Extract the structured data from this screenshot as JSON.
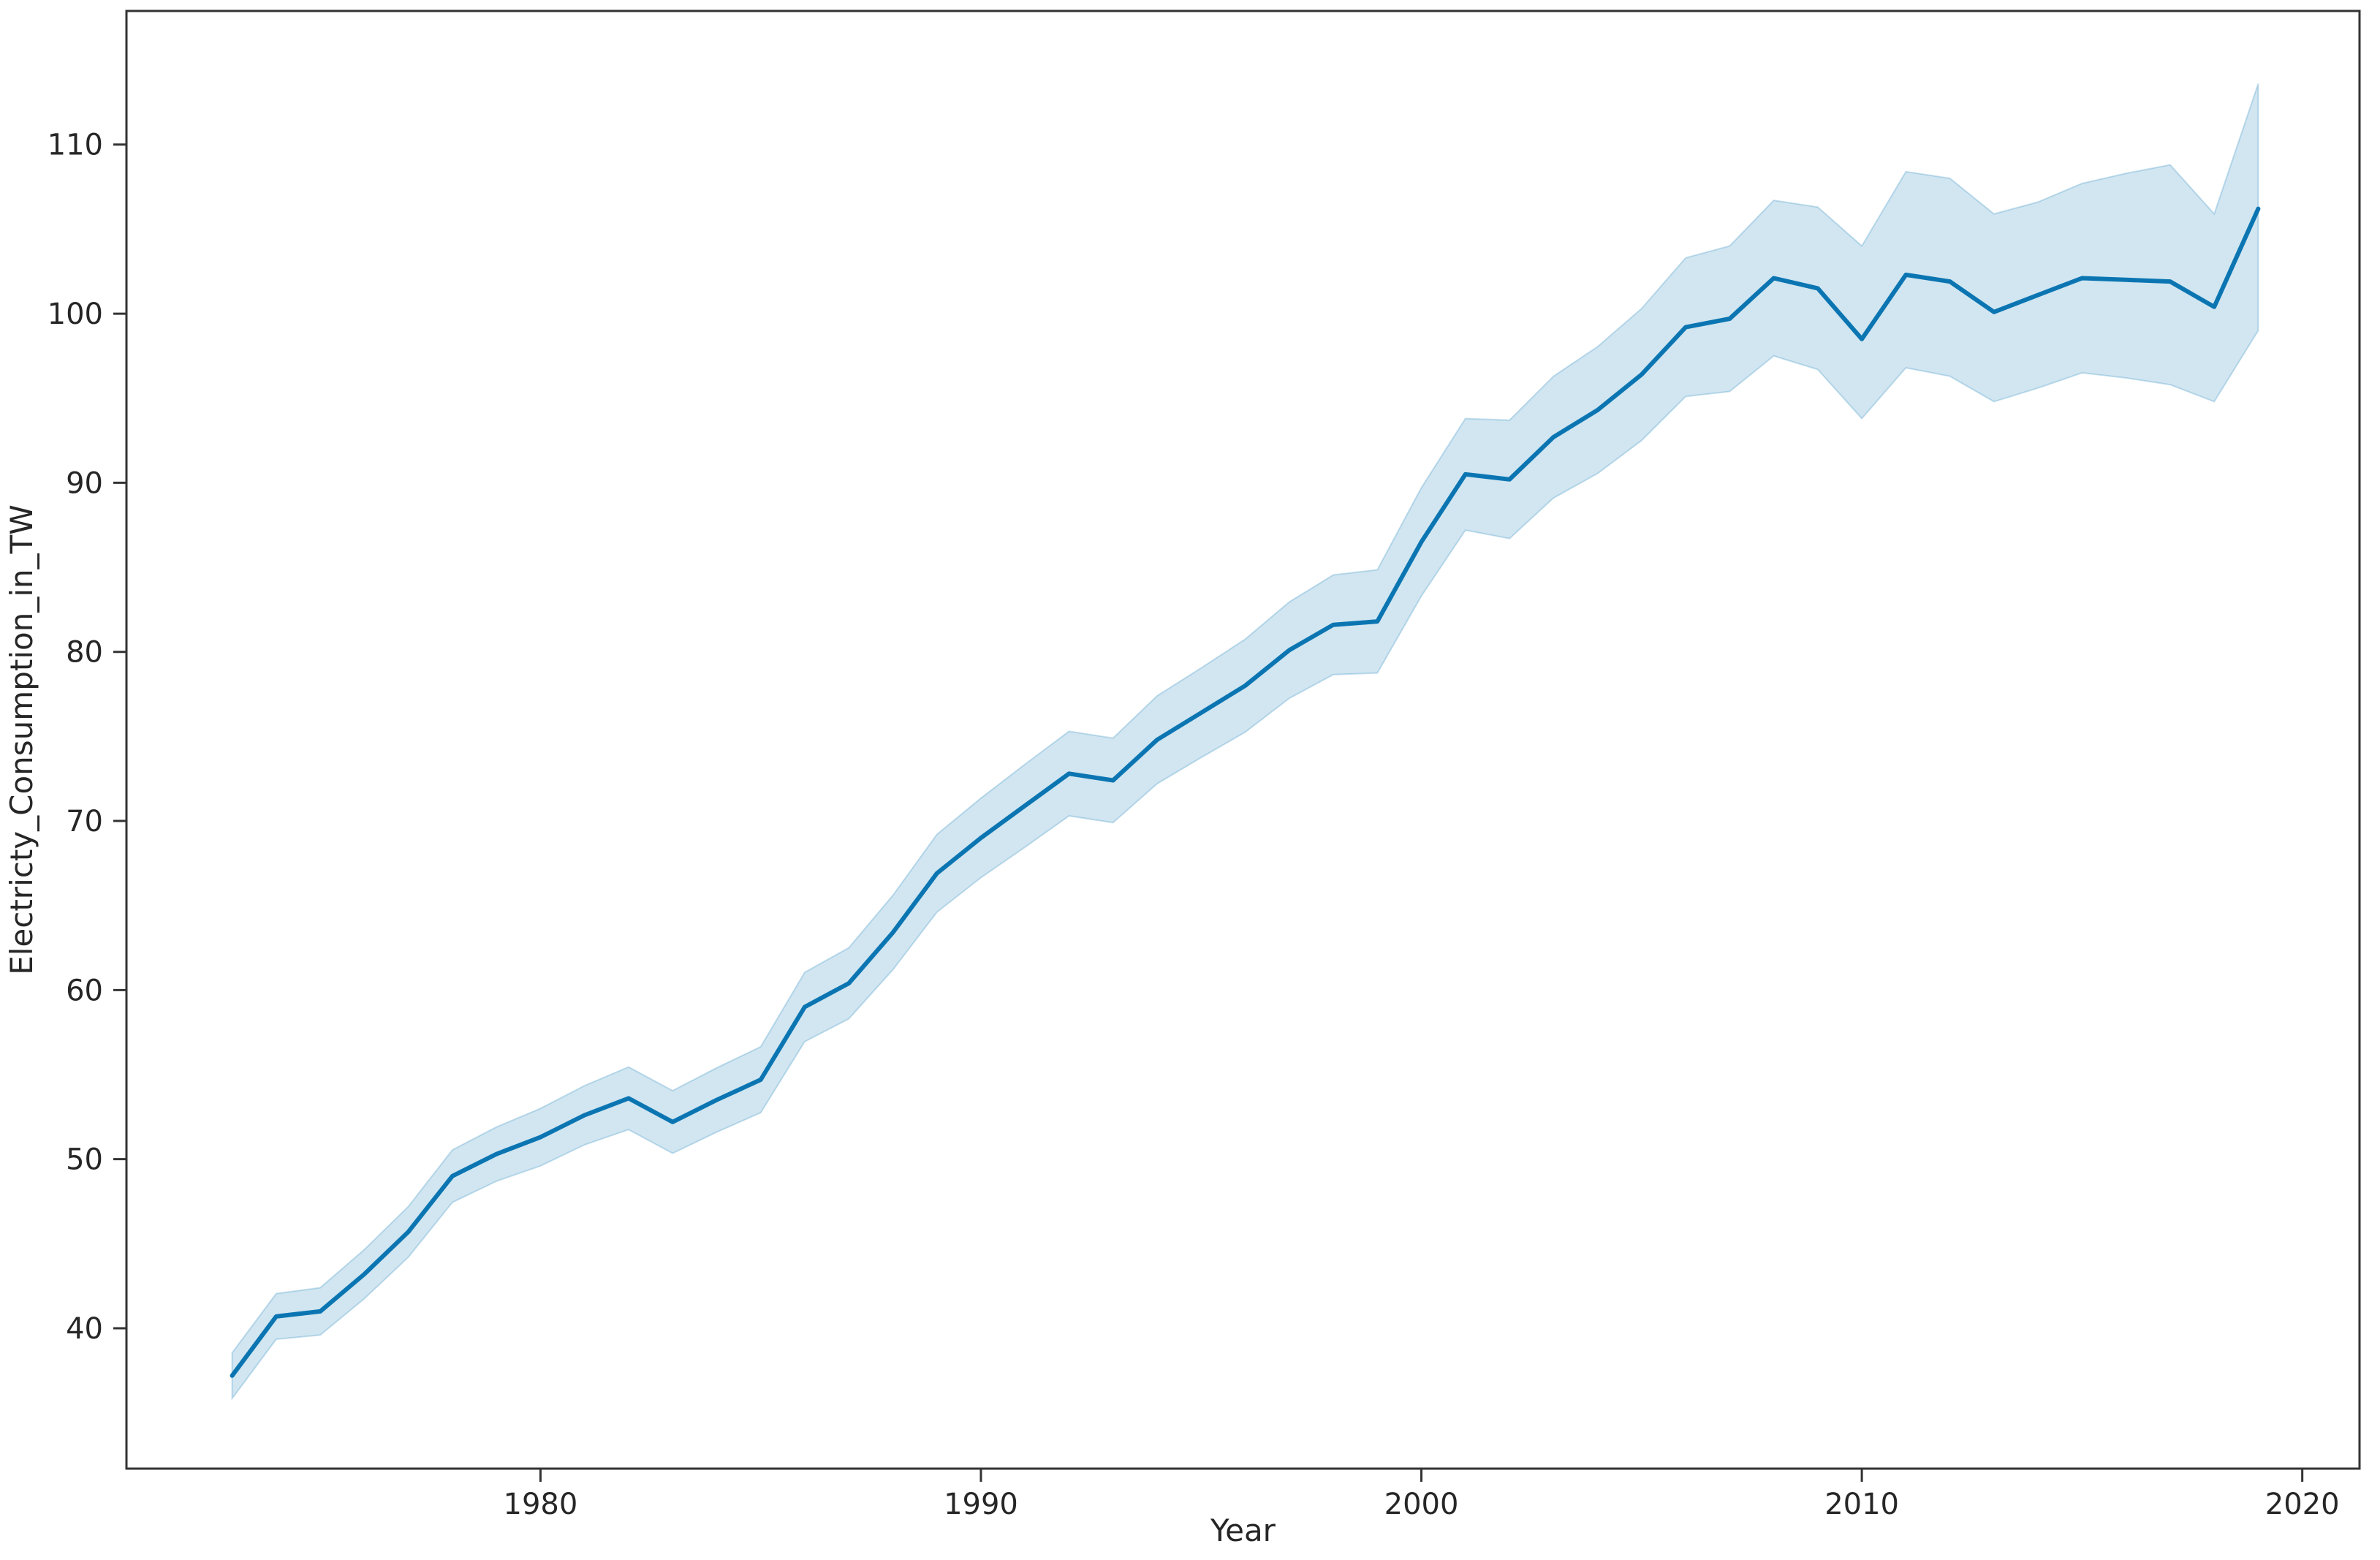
{
  "chart_data": {
    "type": "line",
    "title": "",
    "xlabel": "Year",
    "ylabel": "Electricty_Consumption_in_TW",
    "x": [
      1973,
      1974,
      1975,
      1976,
      1977,
      1978,
      1979,
      1980,
      1981,
      1982,
      1983,
      1984,
      1985,
      1986,
      1987,
      1988,
      1989,
      1990,
      1991,
      1992,
      1993,
      1994,
      1995,
      1996,
      1997,
      1998,
      1999,
      2000,
      2001,
      2002,
      2003,
      2004,
      2005,
      2006,
      2007,
      2008,
      2009,
      2010,
      2011,
      2012,
      2013,
      2014,
      2015,
      2016,
      2017,
      2018,
      2019
    ],
    "series": [
      {
        "name": "Electricty_Consumption_in_TW mean",
        "values": [
          37.2,
          40.7,
          41.0,
          43.2,
          45.7,
          49.0,
          50.3,
          51.3,
          52.6,
          53.6,
          52.2,
          53.5,
          54.7,
          59.0,
          60.4,
          63.4,
          66.9,
          69.0,
          70.9,
          72.8,
          72.4,
          74.8,
          76.4,
          78.0,
          80.1,
          81.6,
          81.8,
          86.5,
          90.5,
          90.2,
          92.7,
          94.3,
          96.4,
          99.2,
          99.7,
          102.1,
          101.5,
          98.5,
          102.3,
          101.9,
          100.1,
          101.1,
          102.1,
          102.0,
          101.9,
          100.4,
          106.2
        ]
      }
    ],
    "ci_band": {
      "lo": [
        35.85,
        39.35,
        39.6,
        41.75,
        44.2,
        47.45,
        48.7,
        49.6,
        50.85,
        51.75,
        50.35,
        51.6,
        52.75,
        56.95,
        58.3,
        61.2,
        64.6,
        66.65,
        68.45,
        70.3,
        69.9,
        72.2,
        73.75,
        75.25,
        77.25,
        78.65,
        78.75,
        83.3,
        87.2,
        86.7,
        89.1,
        90.55,
        92.5,
        95.1,
        95.4,
        97.5,
        96.7,
        93.8,
        96.8,
        96.3,
        94.8,
        95.6,
        96.5,
        96.2,
        95.8,
        94.8,
        99.0
      ],
      "hi": [
        38.55,
        42.05,
        42.4,
        44.65,
        47.2,
        50.55,
        51.9,
        53.0,
        54.35,
        55.45,
        54.05,
        55.4,
        56.65,
        61.05,
        62.5,
        65.6,
        69.2,
        71.35,
        73.35,
        75.3,
        74.9,
        77.4,
        79.05,
        80.75,
        82.95,
        84.55,
        84.85,
        89.7,
        93.8,
        93.7,
        96.3,
        98.05,
        100.3,
        103.3,
        104.0,
        106.7,
        106.3,
        104.0,
        108.4,
        108.0,
        105.9,
        106.6,
        107.7,
        108.3,
        108.8,
        105.9,
        113.6
      ]
    },
    "xticks": [
      1980,
      1990,
      2000,
      2010,
      2020
    ],
    "yticks": [
      40,
      50,
      60,
      70,
      80,
      90,
      100,
      110
    ],
    "xlim": [
      1970.6,
      2021.3
    ],
    "ylim": [
      31.7,
      117.9
    ],
    "grid": false,
    "legend": "none",
    "colors": {
      "line": "#0b75b2",
      "band_fill": "rgba(2,115,178,0.18)",
      "band_edge": "rgba(2,115,178,0.22)",
      "spine": "#333333",
      "text": "#262626",
      "background": "#ffffff"
    }
  }
}
